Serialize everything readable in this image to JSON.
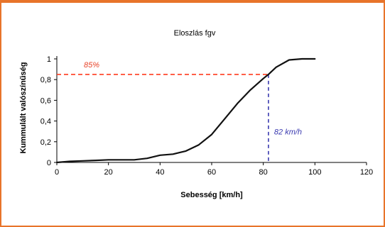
{
  "colors": {
    "frame": "#e8742a",
    "curve": "#111111",
    "annotation_red": "#ff3b1f",
    "annotation_blue": "#3a3ab0"
  },
  "chart_data": {
    "type": "line",
    "title": "Eloszlás fgv",
    "xlabel": "Sebesség [km/h]",
    "ylabel": "Kummulált valószínűség",
    "xlim": [
      0,
      120
    ],
    "ylim": [
      0,
      1
    ],
    "xticks": [
      "0",
      "20",
      "40",
      "60",
      "80",
      "100",
      "120"
    ],
    "yticks": [
      "0",
      "0,2",
      "0,4",
      "0,6",
      "0,8",
      "1"
    ],
    "series": [
      {
        "x": [
          0,
          5,
          10,
          15,
          20,
          25,
          30,
          35,
          40,
          45,
          50,
          55,
          60,
          65,
          70,
          75,
          80,
          82,
          85,
          90,
          95,
          100
        ],
        "y": [
          0,
          0.01,
          0.015,
          0.02,
          0.025,
          0.025,
          0.025,
          0.04,
          0.07,
          0.08,
          0.11,
          0.17,
          0.27,
          0.42,
          0.57,
          0.7,
          0.81,
          0.85,
          0.92,
          0.99,
          1.0,
          1.0
        ]
      }
    ],
    "annotations": [
      {
        "label": "85%",
        "type": "hline",
        "y": 0.85,
        "x_to": 82
      },
      {
        "label": "82 km/h",
        "type": "vline",
        "x": 82,
        "y_to": 0.85
      }
    ],
    "grid": false,
    "legend": "none"
  }
}
